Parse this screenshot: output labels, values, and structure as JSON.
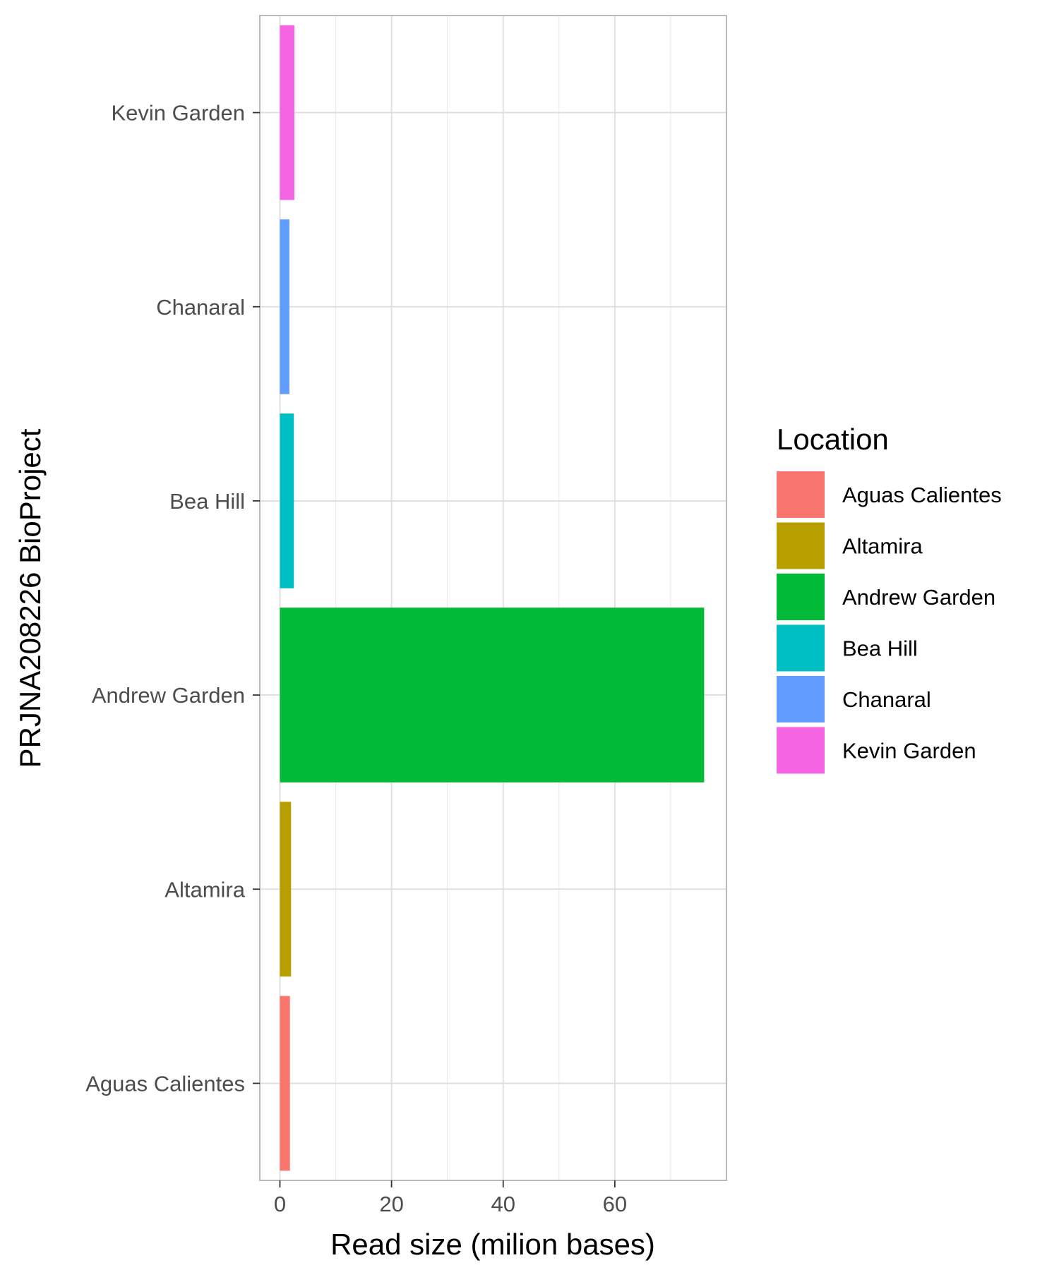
{
  "chart_data": {
    "type": "bar",
    "orientation": "horizontal",
    "title": "",
    "xlabel": "Read size (milion bases)",
    "ylabel": "PRJNA208226 BioProject",
    "xlim": [
      -3.6,
      80
    ],
    "x_ticks": [
      0,
      20,
      40,
      60
    ],
    "x_tick_labels": [
      "0",
      "20",
      "40",
      "60"
    ],
    "grid": true,
    "legend_position": "right",
    "legend_title": "Location",
    "categories": [
      "Aguas Calientes",
      "Altamira",
      "Andrew Garden",
      "Bea Hill",
      "Chanaral",
      "Kevin Garden"
    ],
    "values": [
      1.8,
      2.0,
      76.0,
      2.5,
      1.7,
      2.6
    ],
    "colors": [
      "#F8766D",
      "#B79F00",
      "#00BA38",
      "#00BFC4",
      "#619CFF",
      "#F564E3"
    ]
  }
}
